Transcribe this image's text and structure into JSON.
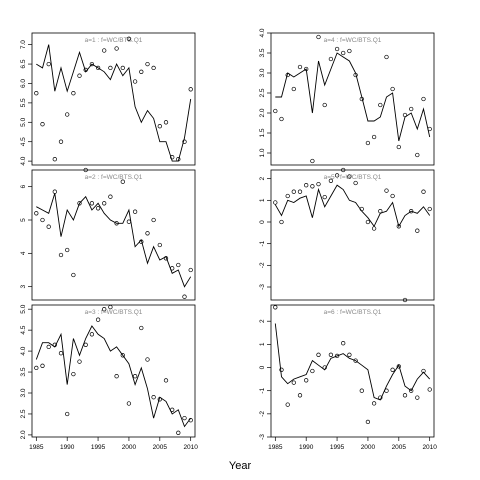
{
  "xlabel": "Year",
  "chart_data": [
    {
      "type": "line+scatter",
      "title": "a=1  :  f=WC/BTS.Q1",
      "x": [
        1985,
        1986,
        1987,
        1988,
        1989,
        1990,
        1991,
        1992,
        1993,
        1994,
        1995,
        1996,
        1997,
        1998,
        1999,
        2000,
        2001,
        2002,
        2003,
        2004,
        2005,
        2006,
        2007,
        2008,
        2009,
        2010
      ],
      "series": [
        {
          "kind": "line",
          "values": [
            6.5,
            6.4,
            7.0,
            5.8,
            6.4,
            5.8,
            6.3,
            6.8,
            6.3,
            6.5,
            6.4,
            6.3,
            6.1,
            6.5,
            6.2,
            6.4,
            5.4,
            5.0,
            5.3,
            5.1,
            4.5,
            4.5,
            4.0,
            4.0,
            4.6,
            5.6
          ]
        },
        {
          "kind": "points",
          "values": [
            5.75,
            4.95,
            6.5,
            4.05,
            4.5,
            5.2,
            5.75,
            6.2,
            6.35,
            6.5,
            6.4,
            6.85,
            6.4,
            6.9,
            6.4,
            7.15,
            6.05,
            6.3,
            6.5,
            6.4,
            4.9,
            5.0,
            4.1,
            4.05,
            4.5,
            5.85
          ]
        }
      ],
      "ylim": [
        3.9,
        7.3
      ],
      "yticks": [
        "4.0",
        "4.5",
        "5.0",
        "5.5",
        "6.0",
        "6.5",
        "7.0"
      ]
    },
    {
      "type": "line+scatter",
      "title": "a=4  :  f=WC/BTS.Q1",
      "x": [
        1985,
        1986,
        1987,
        1988,
        1989,
        1990,
        1991,
        1992,
        1993,
        1994,
        1995,
        1996,
        1997,
        1998,
        1999,
        2000,
        2001,
        2002,
        2003,
        2004,
        2005,
        2006,
        2007,
        2008,
        2009,
        2010
      ],
      "series": [
        {
          "kind": "line",
          "values": [
            2.4,
            2.4,
            3.0,
            2.9,
            3.0,
            3.1,
            2.0,
            3.3,
            2.7,
            3.1,
            3.5,
            3.4,
            3.3,
            3.0,
            2.4,
            1.8,
            1.8,
            1.9,
            2.4,
            2.5,
            1.3,
            1.9,
            2.0,
            1.6,
            2.1,
            1.4
          ]
        },
        {
          "kind": "points",
          "values": [
            2.05,
            1.85,
            2.95,
            2.6,
            3.15,
            3.1,
            0.8,
            3.9,
            2.2,
            3.35,
            3.6,
            3.5,
            3.55,
            2.95,
            2.35,
            1.25,
            1.4,
            2.2,
            3.4,
            2.6,
            1.15,
            1.95,
            2.1,
            0.95,
            2.35,
            1.6
          ]
        }
      ],
      "ylim": [
        0.7,
        4.0
      ],
      "yticks": [
        "1.0",
        "1.5",
        "2.0",
        "2.5",
        "3.0",
        "3.5",
        "4.0"
      ]
    },
    {
      "type": "line+scatter",
      "title": "a=2  :  f=WC/BTS.Q1",
      "x": [
        1985,
        1986,
        1987,
        1988,
        1989,
        1990,
        1991,
        1992,
        1993,
        1994,
        1995,
        1996,
        1997,
        1998,
        1999,
        2000,
        2001,
        2002,
        2003,
        2004,
        2005,
        2006,
        2007,
        2008,
        2009,
        2010
      ],
      "series": [
        {
          "kind": "line",
          "values": [
            5.4,
            5.3,
            5.2,
            5.8,
            4.5,
            5.3,
            5.0,
            5.5,
            5.7,
            5.3,
            5.5,
            5.2,
            5.0,
            4.9,
            4.9,
            5.3,
            4.2,
            4.4,
            3.7,
            4.2,
            3.8,
            3.9,
            3.4,
            3.5,
            3.0,
            3.3
          ]
        },
        {
          "kind": "points",
          "values": [
            5.2,
            5.0,
            4.8,
            5.85,
            3.95,
            4.1,
            3.35,
            5.5,
            6.5,
            5.5,
            5.35,
            5.5,
            5.7,
            4.9,
            6.15,
            4.95,
            5.25,
            4.35,
            4.6,
            5.0,
            4.25,
            3.85,
            3.55,
            3.65,
            2.7,
            3.5
          ]
        }
      ],
      "ylim": [
        2.6,
        6.5
      ],
      "yticks": [
        "3",
        "4",
        "5",
        "6"
      ]
    },
    {
      "type": "line+scatter",
      "title": "a=5  :  f=WC/BTS.Q1",
      "x": [
        1985,
        1986,
        1987,
        1988,
        1989,
        1990,
        1991,
        1992,
        1993,
        1994,
        1995,
        1996,
        1997,
        1998,
        1999,
        2000,
        2001,
        2002,
        2003,
        2004,
        2005,
        2006,
        2007,
        2008,
        2009,
        2010
      ],
      "series": [
        {
          "kind": "line",
          "values": [
            0.8,
            0.3,
            1.0,
            0.9,
            1.1,
            1.2,
            0.2,
            1.5,
            0.7,
            1.2,
            1.7,
            1.5,
            1.0,
            0.9,
            0.5,
            0.2,
            -0.2,
            0.4,
            0.5,
            0.9,
            -0.2,
            0.3,
            0.5,
            0.4,
            0.7,
            0.3
          ]
        },
        {
          "kind": "points",
          "values": [
            0.9,
            0.0,
            1.2,
            1.4,
            1.4,
            1.7,
            1.65,
            1.75,
            1.15,
            1.9,
            2.15,
            2.4,
            2.1,
            1.8,
            0.6,
            0.0,
            -0.3,
            0.5,
            1.45,
            1.2,
            -0.2,
            -3.6,
            0.5,
            -0.4,
            1.4,
            0.6
          ]
        }
      ],
      "ylim": [
        -3.6,
        2.4
      ],
      "yticks": [
        "-3",
        "-2",
        "-1",
        "0",
        "1",
        "2"
      ]
    },
    {
      "type": "line+scatter",
      "title": "a=3  :  f=WC/BTS.Q1",
      "x": [
        1985,
        1986,
        1987,
        1988,
        1989,
        1990,
        1991,
        1992,
        1993,
        1994,
        1995,
        1996,
        1997,
        1998,
        1999,
        2000,
        2001,
        2002,
        2003,
        2004,
        2005,
        2006,
        2007,
        2008,
        2009,
        2010
      ],
      "series": [
        {
          "kind": "line",
          "values": [
            3.8,
            4.2,
            4.2,
            4.1,
            4.4,
            3.2,
            4.3,
            3.9,
            4.3,
            4.6,
            4.4,
            4.3,
            4.0,
            4.1,
            3.9,
            3.7,
            3.2,
            3.6,
            3.1,
            2.4,
            2.9,
            2.8,
            2.5,
            2.6,
            2.2,
            2.4
          ]
        },
        {
          "kind": "points",
          "values": [
            3.6,
            3.65,
            4.1,
            4.15,
            3.95,
            2.5,
            3.45,
            3.75,
            4.15,
            4.4,
            4.75,
            5.0,
            5.05,
            3.4,
            3.9,
            2.75,
            3.4,
            4.55,
            3.8,
            2.9,
            2.85,
            3.3,
            2.6,
            2.05,
            2.4,
            2.35
          ]
        }
      ],
      "ylim": [
        1.95,
        5.1
      ],
      "yticks": [
        "2.0",
        "2.5",
        "3.0",
        "3.5",
        "4.0",
        "4.5",
        "5.0"
      ]
    },
    {
      "type": "line+scatter",
      "title": "a=6  :  f=WC/BTS.Q1",
      "x": [
        1985,
        1986,
        1987,
        1988,
        1989,
        1990,
        1991,
        1992,
        1993,
        1994,
        1995,
        1996,
        1997,
        1998,
        1999,
        2000,
        2001,
        2002,
        2003,
        2004,
        2005,
        2006,
        2007,
        2008,
        2009,
        2010
      ],
      "series": [
        {
          "kind": "line",
          "values": [
            1.9,
            -0.4,
            -0.7,
            -0.5,
            -0.4,
            -0.3,
            0.3,
            0.1,
            -0.1,
            0.4,
            0.5,
            0.6,
            0.4,
            0.3,
            0.1,
            -0.1,
            -1.3,
            -1.4,
            -0.8,
            -0.3,
            0.1,
            -0.8,
            -1.0,
            -0.5,
            -0.2,
            -0.5
          ]
        },
        {
          "kind": "points",
          "values": [
            2.6,
            -0.1,
            -1.6,
            -0.65,
            -1.2,
            -0.55,
            -0.15,
            0.55,
            0.0,
            0.55,
            0.5,
            1.05,
            0.55,
            0.3,
            -1.0,
            -2.35,
            -1.55,
            -1.3,
            -1.0,
            -0.1,
            0.05,
            -1.2,
            -1.0,
            -1.3,
            -0.15,
            -0.95
          ]
        }
      ],
      "ylim": [
        -3.0,
        2.7
      ],
      "yticks": [
        "-3",
        "-2",
        "-1",
        "0",
        "1",
        "2"
      ]
    }
  ],
  "xticks": [
    "1985",
    "1990",
    "1995",
    "2000",
    "2005",
    "2010"
  ],
  "xtick_values": [
    1985,
    1990,
    1995,
    2000,
    2005,
    2010
  ],
  "xlim": [
    1984.3,
    2010.7
  ]
}
